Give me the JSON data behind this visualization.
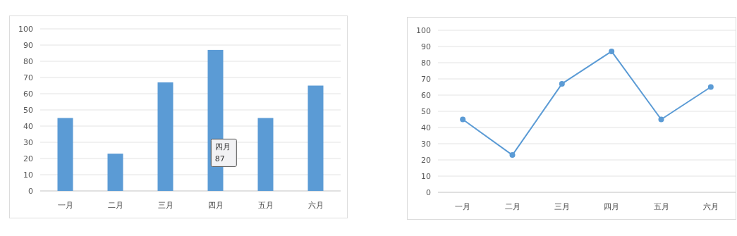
{
  "chart_data": [
    {
      "type": "bar",
      "categories": [
        "一月",
        "二月",
        "三月",
        "四月",
        "五月",
        "六月"
      ],
      "series": [
        {
          "color": "#5b9bd5",
          "values": [
            45,
            23,
            67,
            87,
            45,
            65
          ]
        }
      ],
      "ylim": [
        0,
        100
      ],
      "yticks": [
        0,
        10,
        20,
        30,
        40,
        50,
        60,
        70,
        80,
        90,
        100
      ],
      "grid": "y",
      "annotations": [
        "四月\n87"
      ]
    },
    {
      "type": "line",
      "categories": [
        "一月",
        "二月",
        "三月",
        "四月",
        "五月",
        "六月"
      ],
      "series": [
        {
          "color": "#5b9bd5",
          "values": [
            45,
            23,
            67,
            87,
            45,
            65
          ]
        }
      ],
      "ylim": [
        0,
        100
      ],
      "yticks": [
        0,
        10,
        20,
        30,
        40,
        50,
        60,
        70,
        80,
        90,
        100
      ],
      "grid": "y",
      "marker": "circle"
    }
  ]
}
